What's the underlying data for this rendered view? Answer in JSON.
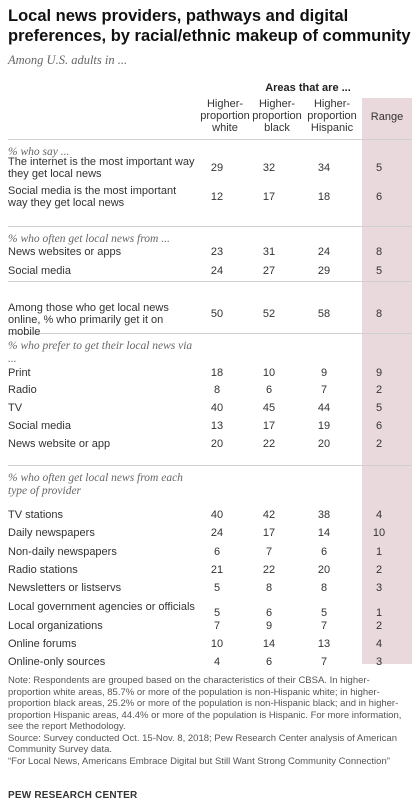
{
  "title": "Local news providers, pathways and digital preferences, by racial/ethnic makeup of community",
  "subtitle": "Among U.S. adults in ...",
  "group_header": "Areas that are ...",
  "columns": [
    {
      "line1": "Higher-",
      "line2": "proportion",
      "line3": "white"
    },
    {
      "line1": "Higher-",
      "line2": "proportion",
      "line3": "black"
    },
    {
      "line1": "Higher-",
      "line2": "proportion",
      "line3": "Hispanic"
    },
    {
      "line1": "Range",
      "line2": "",
      "line3": ""
    }
  ],
  "chart_data": {
    "type": "table",
    "columns": [
      "Higher-proportion white",
      "Higher-proportion black",
      "Higher-proportion Hispanic",
      "Range"
    ],
    "sections": [
      {
        "label": "% who say ...",
        "rows": [
          {
            "label": "The internet is the most important way they get local news",
            "values": [
              29,
              32,
              34,
              5
            ]
          },
          {
            "label": "Social media is the most important way they get local news",
            "values": [
              12,
              17,
              18,
              6
            ]
          }
        ]
      },
      {
        "label": "% who often get local news from ...",
        "rows": [
          {
            "label": "News websites or apps",
            "values": [
              23,
              31,
              24,
              8
            ]
          },
          {
            "label": "Social media",
            "values": [
              24,
              27,
              29,
              5
            ]
          },
          {
            "label": "Among those who get local news online, % who primarily get it on mobile",
            "values": [
              50,
              52,
              58,
              8
            ]
          }
        ]
      },
      {
        "label": "% who prefer to get their local news via ...",
        "rows": [
          {
            "label": "Print",
            "values": [
              18,
              10,
              9,
              9
            ]
          },
          {
            "label": "Radio",
            "values": [
              8,
              6,
              7,
              2
            ]
          },
          {
            "label": "TV",
            "values": [
              40,
              45,
              44,
              5
            ]
          },
          {
            "label": "Social media",
            "values": [
              13,
              17,
              19,
              6
            ]
          },
          {
            "label": "News website or app",
            "values": [
              20,
              22,
              20,
              2
            ]
          }
        ]
      },
      {
        "label": "% who often get local news from each type of provider",
        "rows": [
          {
            "label": "TV stations",
            "values": [
              40,
              42,
              38,
              4
            ]
          },
          {
            "label": "Daily newspapers",
            "values": [
              24,
              17,
              14,
              10
            ]
          },
          {
            "label": "Non-daily newspapers",
            "values": [
              6,
              7,
              6,
              1
            ]
          },
          {
            "label": "Radio stations",
            "values": [
              21,
              22,
              20,
              2
            ]
          },
          {
            "label": "Newsletters or listservs",
            "values": [
              5,
              8,
              8,
              3
            ]
          },
          {
            "label": "Local government agencies or officials",
            "values": [
              5,
              6,
              5,
              1
            ]
          },
          {
            "label": "Local organizations",
            "values": [
              7,
              9,
              7,
              2
            ]
          },
          {
            "label": "Online forums",
            "values": [
              10,
              14,
              13,
              4
            ]
          },
          {
            "label": "Online-only sources",
            "values": [
              4,
              6,
              7,
              3
            ]
          }
        ]
      }
    ]
  },
  "notes": [
    "Note: Respondents are grouped based on the characteristics of their CBSA. In higher-proportion white areas, 85.7% or more of the population is non-Hispanic white; in higher-proportion black areas, 25.2% or more of the population is non-Hispanic black; and in higher-proportion Hispanic areas, 44.4% or more of the population is Hispanic. For more information, see the report Methodology.",
    "Source: Survey conducted Oct. 15-Nov. 8, 2018; Pew Research Center analysis of American Community Survey data.",
    "“For Local News, Americans Embrace Digital but Still Want Strong Community Connection”"
  ],
  "footer": "PEW RESEARCH CENTER"
}
